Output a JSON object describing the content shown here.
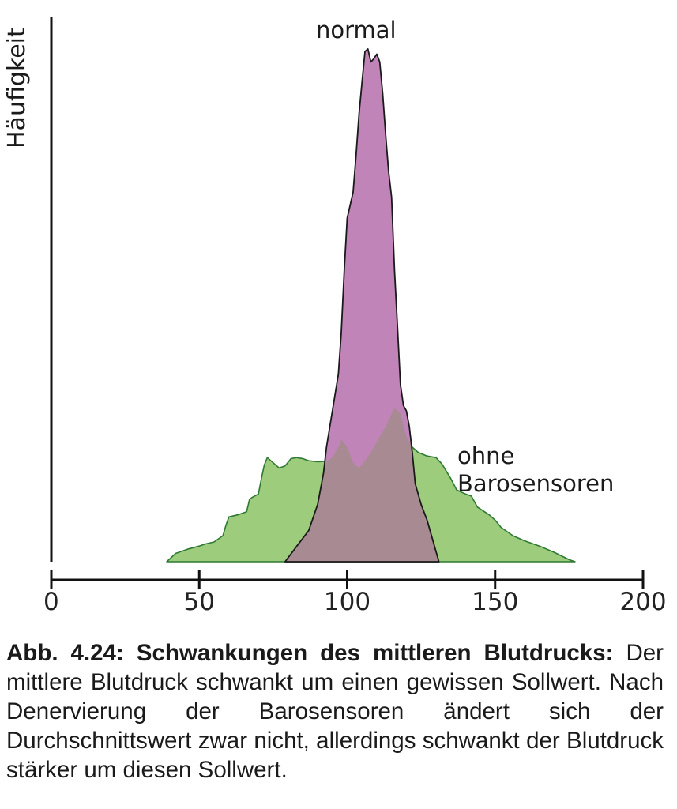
{
  "chart_data": {
    "type": "area",
    "ylabel": "Häufigkeit",
    "xlabel": "",
    "xlim": [
      0,
      200
    ],
    "x_ticks": [
      0,
      50,
      100,
      150,
      200
    ],
    "x_tick_labels": [
      "0",
      "50",
      "100",
      "150",
      "200"
    ],
    "ylim": [
      0,
      100
    ],
    "grid": false,
    "series": [
      {
        "name": "ohne Barosensoren",
        "color": "#9ccc7c",
        "stroke": "#2f7a33",
        "points": [
          [
            39,
            0
          ],
          [
            42,
            1.6
          ],
          [
            46,
            2.4
          ],
          [
            50,
            3
          ],
          [
            52,
            3.4
          ],
          [
            55,
            3.8
          ],
          [
            58,
            5
          ],
          [
            59,
            7
          ],
          [
            60,
            8.6
          ],
          [
            63,
            9
          ],
          [
            66,
            9.6
          ],
          [
            67,
            12
          ],
          [
            68,
            12.4
          ],
          [
            70,
            13
          ],
          [
            71,
            16
          ],
          [
            72,
            18.6
          ],
          [
            73,
            20
          ],
          [
            75,
            19
          ],
          [
            77,
            18
          ],
          [
            79,
            18.4
          ],
          [
            81,
            19.8
          ],
          [
            83,
            20
          ],
          [
            85,
            19.8
          ],
          [
            87,
            19.4
          ],
          [
            90,
            19.2
          ],
          [
            93,
            19.3
          ],
          [
            95,
            20
          ],
          [
            97,
            22
          ],
          [
            98,
            23.5
          ],
          [
            100,
            22
          ],
          [
            102,
            19
          ],
          [
            104,
            18
          ],
          [
            106,
            19.4
          ],
          [
            108,
            21
          ],
          [
            110,
            23
          ],
          [
            113,
            26
          ],
          [
            116,
            29.5
          ],
          [
            118,
            28.5
          ],
          [
            120,
            24
          ],
          [
            122,
            22
          ],
          [
            124,
            21
          ],
          [
            127,
            20.3
          ],
          [
            130,
            20
          ],
          [
            132,
            18.8
          ],
          [
            135,
            16
          ],
          [
            137,
            13.8
          ],
          [
            140,
            13
          ],
          [
            142,
            12.6
          ],
          [
            144,
            10.5
          ],
          [
            148,
            9
          ],
          [
            150,
            8
          ],
          [
            152,
            6.6
          ],
          [
            156,
            5
          ],
          [
            160,
            4
          ],
          [
            165,
            3
          ],
          [
            170,
            1.8
          ],
          [
            175,
            0.4
          ],
          [
            177,
            0
          ]
        ]
      },
      {
        "name": "normal",
        "color": "#c084b8",
        "stroke": "#1a1a1a",
        "points": [
          [
            79,
            0
          ],
          [
            83,
            3
          ],
          [
            87,
            6
          ],
          [
            90,
            11
          ],
          [
            92,
            17
          ],
          [
            93,
            22
          ],
          [
            95,
            29
          ],
          [
            97,
            36
          ],
          [
            98,
            44
          ],
          [
            99,
            56
          ],
          [
            100,
            66
          ],
          [
            102,
            71
          ],
          [
            103,
            78
          ],
          [
            104,
            86
          ],
          [
            105,
            92
          ],
          [
            106,
            98
          ],
          [
            107,
            98.5
          ],
          [
            108,
            96
          ],
          [
            109,
            96.6
          ],
          [
            110,
            97.5
          ],
          [
            111,
            96
          ],
          [
            112,
            90
          ],
          [
            113,
            82
          ],
          [
            114,
            75
          ],
          [
            115,
            70
          ],
          [
            116,
            56
          ],
          [
            117,
            45
          ],
          [
            118,
            34
          ],
          [
            119,
            30
          ],
          [
            120,
            29
          ],
          [
            121,
            26
          ],
          [
            122,
            21
          ],
          [
            123,
            15
          ],
          [
            125,
            11
          ],
          [
            127,
            8
          ],
          [
            129,
            4
          ],
          [
            131,
            0
          ]
        ]
      }
    ],
    "overlap_color": "#a88a92",
    "annotations": [
      "normal",
      "ohne",
      "Barosensoren"
    ]
  },
  "caption": {
    "bold": "Abb. 4.24: Schwankungen des mittleren Blutdrucks:",
    "text": " Der mittlere Blutdruck schwankt um einen gewissen Sollwert. Nach Denervierung der Barosensoren ändert sich der Durchschnittswert zwar nicht, allerdings schwankt der Blutdruck stärker um diesen Sollwert."
  }
}
